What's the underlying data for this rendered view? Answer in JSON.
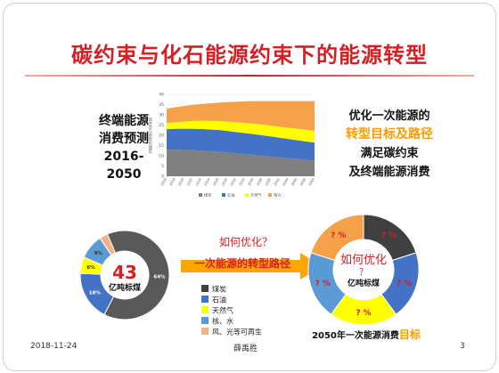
{
  "slide": {
    "title": "碳约束与化石能源约束下的能源转型",
    "left_label": [
      "终端能源",
      "消费预测",
      "2016-",
      "2050"
    ],
    "right_text": {
      "line1": "优化一次能源的",
      "line2": "转型目标及路径",
      "line3": "满足碳约束",
      "line4": "及终端能源消费"
    },
    "arrow_question": "如何优化？",
    "arrow_label": "一次能源的转型路径",
    "target_caption_prefix": "2050年一次能源消费",
    "target_caption_highlight": "目标",
    "footer": {
      "date": "2018-11-24",
      "author": "薛禹胜",
      "page": "3"
    }
  },
  "colors": {
    "title": "#d61f24",
    "accent": "#ff9900",
    "coal": "#404040",
    "oil": "#4472c4",
    "gas": "#ffff00",
    "nuclear_hydro": "#5b9bd5",
    "wind_solar": "#f4b183"
  },
  "chart_data": [
    {
      "type": "area",
      "stacked": true,
      "ylabel": "终端能源消费量(亿吨标准煤)",
      "ylim": [
        0,
        40
      ],
      "yticks": [
        "0",
        "5",
        "10",
        "15",
        "20",
        "25",
        "30",
        "35",
        "40"
      ],
      "categories": [
        "2016",
        "2018",
        "2020",
        "2022",
        "2024",
        "2026",
        "2028",
        "2030",
        "2032",
        "2034",
        "2036",
        "2038",
        "2040",
        "2042",
        "2044",
        "2046",
        "2048",
        "2050"
      ],
      "series": [
        {
          "name": "煤炭",
          "color": "#808080",
          "values": [
            13,
            13,
            12.8,
            12.7,
            12.5,
            12.2,
            12,
            11.6,
            11.2,
            10.8,
            10.4,
            10,
            9.6,
            9.2,
            8.8,
            8.4,
            8,
            7.6
          ]
        },
        {
          "name": "石油",
          "color": "#4472c4",
          "values": [
            10,
            10.2,
            10.4,
            10.5,
            10.6,
            10.6,
            10.6,
            10.5,
            10.4,
            10.3,
            10.2,
            10,
            9.8,
            9.6,
            9.4,
            9.2,
            9,
            8.8
          ]
        },
        {
          "name": "天然气",
          "color": "#ffff00",
          "values": [
            3,
            3.2,
            3.5,
            3.8,
            4,
            4.2,
            4.4,
            4.6,
            4.8,
            5,
            5.1,
            5.2,
            5.3,
            5.4,
            5.5,
            5.6,
            5.7,
            5.8
          ]
        },
        {
          "name": "电力",
          "color": "#f4a14a",
          "values": [
            7,
            7.3,
            7.6,
            7.9,
            8.2,
            8.6,
            9,
            9.5,
            10,
            10.5,
            11,
            11.5,
            12,
            12.5,
            13,
            13.5,
            14,
            14.5
          ]
        }
      ]
    },
    {
      "type": "pie",
      "donut": true,
      "center_value": "43",
      "center_unit": "亿吨标煤",
      "slices": [
        {
          "name": "煤炭",
          "value": 64,
          "label": "64%",
          "color": "#595959"
        },
        {
          "name": "石油",
          "value": 18,
          "label": "18%",
          "color": "#4472c4"
        },
        {
          "name": "天然气",
          "value": 6,
          "label": "6%",
          "color": "#ffff00"
        },
        {
          "name": "核、水",
          "value": 9,
          "label": "9%",
          "color": "#5b9bd5"
        },
        {
          "name": "风、光等可再生",
          "value": 3,
          "label": "",
          "color": "#f4b183"
        }
      ]
    },
    {
      "type": "pie",
      "donut": true,
      "center_question": "如何优化",
      "center_mark": "？",
      "center_unit": "亿吨标煤",
      "slices": [
        {
          "name": "煤炭",
          "value": 20,
          "label": "? %",
          "color": "#404040"
        },
        {
          "name": "石油",
          "value": 20,
          "label": "? %",
          "color": "#4472c4"
        },
        {
          "name": "天然气",
          "value": 20,
          "label": "? %",
          "color": "#ffff00"
        },
        {
          "name": "核、水",
          "value": 20,
          "label": "? %",
          "color": "#5b9bd5"
        },
        {
          "name": "风、光等可再生",
          "value": 20,
          "label": "? %",
          "color": "#f4a14a"
        }
      ]
    }
  ],
  "legend": {
    "items": [
      {
        "name": "煤炭",
        "color": "#404040"
      },
      {
        "name": "石油",
        "color": "#4472c4"
      },
      {
        "name": "天然气",
        "color": "#ffff00"
      },
      {
        "name": "核、水",
        "color": "#5b9bd5"
      },
      {
        "name": "风、光等可再生",
        "color": "#f4b183"
      }
    ]
  }
}
